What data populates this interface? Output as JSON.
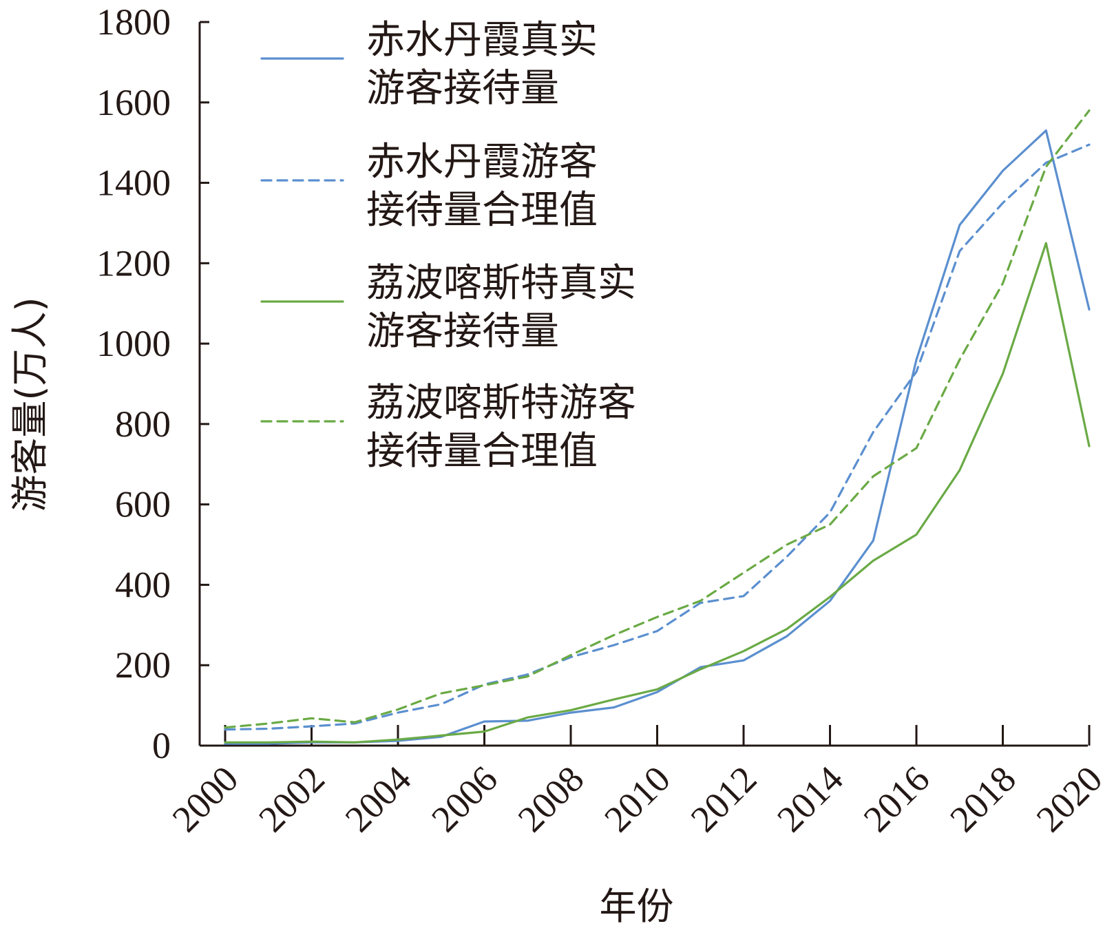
{
  "chart_data": {
    "type": "line",
    "xlabel": "年份",
    "ylabel": "游客量(万人)",
    "xlim": [
      2000,
      2020
    ],
    "ylim": [
      0,
      1800
    ],
    "xticks": [
      2000,
      2002,
      2004,
      2006,
      2008,
      2010,
      2012,
      2014,
      2016,
      2018,
      2020
    ],
    "yticks": [
      0,
      200,
      400,
      600,
      800,
      1000,
      1200,
      1400,
      1600,
      1800
    ],
    "grid": false,
    "legend_position": "top-left",
    "x": [
      2000,
      2001,
      2002,
      2003,
      2004,
      2005,
      2006,
      2007,
      2008,
      2009,
      2010,
      2011,
      2012,
      2013,
      2014,
      2015,
      2016,
      2017,
      2018,
      2019,
      2020
    ],
    "series": [
      {
        "name": "赤水丹霞真实\n游客接待量",
        "color": "#5b8fcf",
        "dash": "solid",
        "values": [
          5,
          5,
          8,
          8,
          12,
          22,
          60,
          62,
          82,
          95,
          133,
          195,
          212,
          272,
          360,
          510,
          960,
          1295,
          1430,
          1530,
          1085
        ]
      },
      {
        "name": "赤水丹霞游客\n接待量合理值",
        "color": "#5b8fcf",
        "dash": "dashed",
        "values": [
          40,
          42,
          48,
          55,
          82,
          103,
          152,
          177,
          220,
          250,
          285,
          355,
          372,
          470,
          580,
          780,
          930,
          1230,
          1350,
          1450,
          1495
        ]
      },
      {
        "name": "荔波喀斯特真实\n游客接待量",
        "color": "#6aaa45",
        "dash": "solid",
        "values": [
          8,
          8,
          10,
          8,
          15,
          25,
          35,
          70,
          88,
          115,
          140,
          190,
          235,
          290,
          370,
          460,
          525,
          685,
          925,
          1250,
          745
        ]
      },
      {
        "name": "荔波喀斯特游客\n接待量合理值",
        "color": "#6aaa45",
        "dash": "dashed",
        "values": [
          45,
          55,
          68,
          58,
          90,
          130,
          150,
          172,
          225,
          275,
          320,
          360,
          430,
          500,
          550,
          670,
          740,
          960,
          1150,
          1440,
          1580
        ]
      }
    ]
  }
}
